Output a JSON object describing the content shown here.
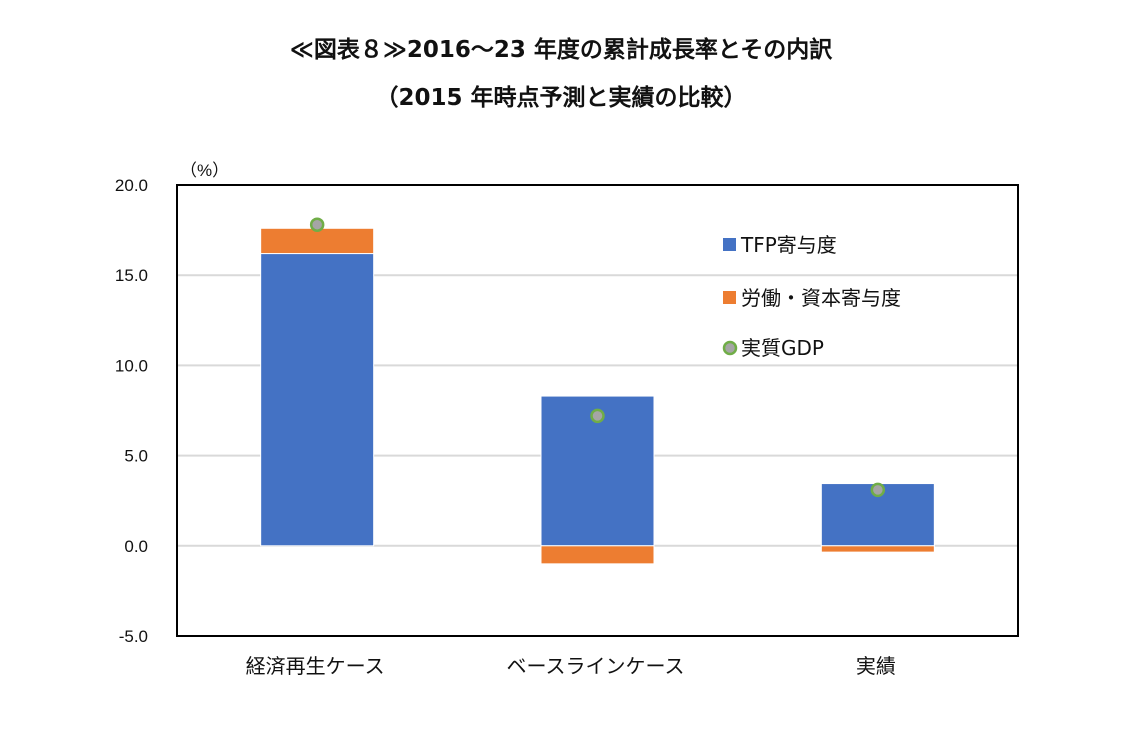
{
  "chart_data": {
    "type": "bar",
    "stacked": true,
    "title": "≪図表８≫2016～23 年度の累計成長率とその内訳",
    "subtitle": "（2015 年時点予測と実績の比較）",
    "ylabel": "（%）",
    "ylim": [
      -5,
      20
    ],
    "yticks": [
      "20.0",
      "15.0",
      "10.0",
      "5.0",
      "0.0",
      "-5.0"
    ],
    "ytick_values": [
      20,
      15,
      10,
      5,
      0,
      -5
    ],
    "grid": true,
    "legend_position": "top-right",
    "categories": [
      "経済再生ケース",
      "ベースラインケース",
      "実績"
    ],
    "series": [
      {
        "name": "TFP寄与度",
        "kind": "bar",
        "color": "#4472C4",
        "values": [
          16.2,
          8.3,
          3.45
        ]
      },
      {
        "name": "労働・資本寄与度",
        "kind": "bar",
        "color": "#ED7D31",
        "values": [
          1.4,
          -1.0,
          -0.35
        ]
      },
      {
        "name": "実質GDP",
        "kind": "marker",
        "color": "#A5A5A5",
        "edge_color": "#70AD47",
        "values": [
          17.8,
          7.2,
          3.1
        ]
      }
    ]
  }
}
